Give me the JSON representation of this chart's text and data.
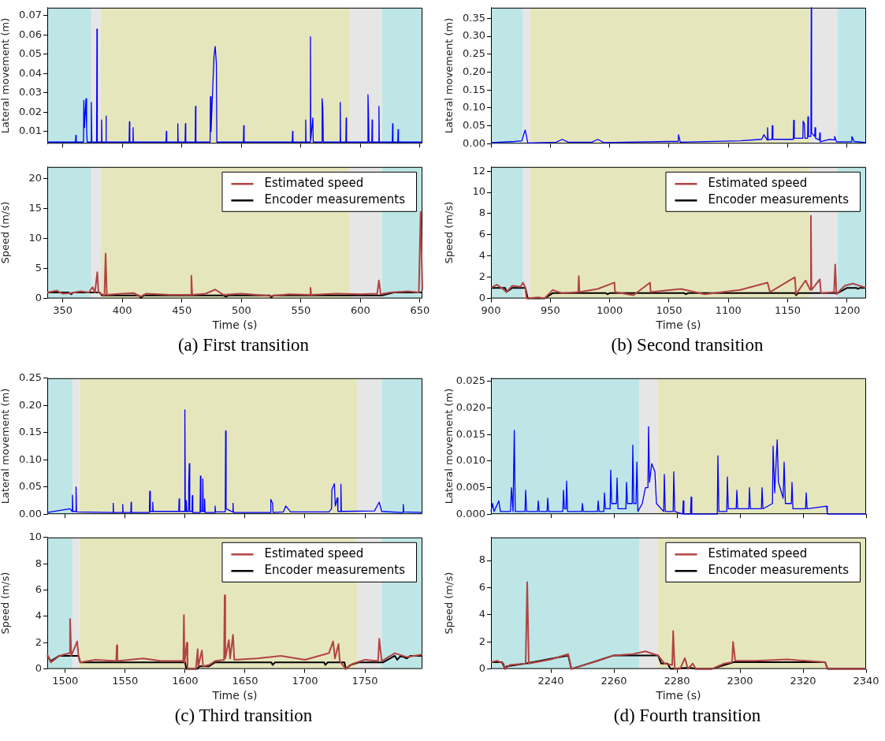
{
  "chart_data": [
    {
      "type": "line",
      "ylabel": "Lateral movement (m)",
      "xlim": [
        337,
        652
      ],
      "xticks": [
        350,
        400,
        450,
        500,
        550,
        600,
        650
      ],
      "ylim": [
        0.0037,
        0.074
      ],
      "yticks": [
        0.01,
        0.02,
        0.03,
        0.04,
        0.05,
        0.06,
        0.07
      ],
      "tick_labels": "y",
      "bands": [
        {
          "axis": "x",
          "from": 337,
          "to": 374,
          "color": "#bee6e6"
        },
        {
          "axis": "x",
          "from": 374,
          "to": 382,
          "color": "#e6e6e6"
        },
        {
          "axis": "x",
          "from": 382,
          "to": 591,
          "color": "#e6e6bd"
        },
        {
          "axis": "x",
          "from": 591,
          "to": 618,
          "color": "#e6e6e6"
        },
        {
          "axis": "x",
          "from": 618,
          "to": 652,
          "color": "#bee6e6"
        }
      ],
      "series": [
        {
          "color": "#0000ff",
          "x": [
            337,
            360.7,
            361,
            361.3,
            367.4,
            367.7,
            368.2,
            369.5,
            370,
            370.5,
            373.7,
            374,
            374.4,
            378.4,
            378.7,
            379,
            382.3,
            382.6,
            382.9,
            386,
            386.3,
            386.6,
            405.7,
            406,
            406.3,
            408.7,
            409,
            409.3,
            436.7,
            437,
            437.3,
            446.3,
            446.6,
            446.9,
            452.7,
            453,
            453.3,
            461.2,
            461.5,
            461.8,
            473.7,
            474,
            474.5,
            477,
            478,
            479,
            479.4,
            501.7,
            502,
            502.3,
            542.7,
            543,
            543.3,
            553.7,
            554,
            554.3,
            557.7,
            558,
            558.3,
            560,
            560.3,
            567.5,
            567.8,
            568.4,
            568.8,
            582.7,
            583,
            583.3,
            587.7,
            588,
            588.3,
            606,
            606.3,
            606.7,
            607.2,
            609.5,
            609.8,
            610.1,
            615.2,
            615.5,
            615.8,
            626.7,
            627,
            627.3,
            631.3,
            631.6,
            631.9,
            652
          ],
          "values": [
            0.0045,
            0.0045,
            0.008,
            0.0045,
            0.0045,
            0.026,
            0.012,
            0.027,
            0.012,
            0.0045,
            0.0045,
            0.025,
            0.0045,
            0.0045,
            0.063,
            0.0045,
            0.0045,
            0.016,
            0.0045,
            0.0045,
            0.018,
            0.0045,
            0.0045,
            0.015,
            0.0045,
            0.0045,
            0.012,
            0.0045,
            0.0045,
            0.01,
            0.0045,
            0.0045,
            0.014,
            0.0045,
            0.0045,
            0.014,
            0.0045,
            0.0045,
            0.023,
            0.0045,
            0.0045,
            0.028,
            0.01,
            0.049,
            0.054,
            0.045,
            0.0045,
            0.0045,
            0.013,
            0.0045,
            0.0045,
            0.01,
            0.0045,
            0.0045,
            0.016,
            0.0045,
            0.0045,
            0.059,
            0.006,
            0.017,
            0.0045,
            0.0045,
            0.027,
            0.022,
            0.0045,
            0.0045,
            0.025,
            0.0045,
            0.0045,
            0.017,
            0.0045,
            0.0045,
            0.029,
            0.02,
            0.0045,
            0.0045,
            0.016,
            0.0045,
            0.0045,
            0.023,
            0.0045,
            0.0045,
            0.014,
            0.0045,
            0.0045,
            0.011,
            0.0045,
            0.0045
          ]
        }
      ]
    },
    {
      "type": "line",
      "xlabel": "Time (s)",
      "ylabel": "Speed (m/s)",
      "xlim": [
        337,
        652
      ],
      "xticks": [
        350,
        400,
        450,
        500,
        550,
        600,
        650
      ],
      "ylim": [
        0,
        22
      ],
      "yticks": [
        0,
        5,
        10,
        15,
        20
      ],
      "legend": "top right",
      "annotations": [
        "(a) First transition"
      ],
      "bands": [
        {
          "axis": "x",
          "from": 337,
          "to": 374,
          "color": "#bee6e6"
        },
        {
          "axis": "x",
          "from": 374,
          "to": 382,
          "color": "#e6e6e6"
        },
        {
          "axis": "x",
          "from": 382,
          "to": 591,
          "color": "#e6e6bd"
        },
        {
          "axis": "x",
          "from": 591,
          "to": 618,
          "color": "#e6e6e6"
        },
        {
          "axis": "x",
          "from": 618,
          "to": 652,
          "color": "#bee6e6"
        }
      ],
      "series": [
        {
          "name": "Estimated speed",
          "color": "#b24343",
          "x": [
            337,
            345,
            350,
            357,
            365,
            372,
            375,
            377,
            379,
            380,
            382,
            385,
            386,
            387,
            400,
            410,
            415,
            420,
            440,
            457.5,
            458,
            458.7,
            470,
            478,
            485,
            500,
            525,
            540,
            557.5,
            558,
            558.6,
            580,
            600,
            614,
            615.5,
            617,
            625,
            640,
            649,
            650.5,
            652
          ],
          "values": [
            1.0,
            1.3,
            0.8,
            0.9,
            1.2,
            1.0,
            1.9,
            1.0,
            4.4,
            1.0,
            0.8,
            0.5,
            7.5,
            0.6,
            0.8,
            0.9,
            0.3,
            0.8,
            0.6,
            0.6,
            3.8,
            0.6,
            0.8,
            1.5,
            0.6,
            0.8,
            0.4,
            0.7,
            0.6,
            1.8,
            0.6,
            0.8,
            0.7,
            0.8,
            3.0,
            0.7,
            1.0,
            1.2,
            1.0,
            14.5,
            1.5
          ]
        },
        {
          "name": "Encoder measurements",
          "color": "#000000",
          "x": [
            337,
            355,
            357,
            359,
            381,
            383,
            414,
            415.5,
            418,
            485,
            487,
            489,
            524,
            525,
            527,
            618,
            628,
            652
          ],
          "values": [
            1.0,
            1.0,
            0.7,
            1.0,
            1.0,
            0.5,
            0.5,
            0.1,
            0.5,
            0.5,
            0.3,
            0.5,
            0.5,
            0.2,
            0.5,
            0.5,
            1.0,
            1.0
          ]
        }
      ]
    },
    {
      "type": "line",
      "ylabel": "Lateral movement (m)",
      "xlim": [
        900,
        1216
      ],
      "xticks": [
        900,
        950,
        1000,
        1050,
        1100,
        1150,
        1200
      ],
      "ylim": [
        0,
        0.38
      ],
      "yticks": [
        {
          "value": 0,
          "label": "0.00"
        },
        0.05,
        {
          "value": 0.1,
          "label": "0.10"
        },
        0.15,
        {
          "value": 0.2,
          "label": "0.20"
        },
        0.25,
        {
          "value": 0.3,
          "label": "0.30"
        },
        0.35
      ],
      "tick_labels": "y",
      "bands": [
        {
          "axis": "x",
          "from": 900,
          "to": 927,
          "color": "#bee6e6"
        },
        {
          "axis": "x",
          "from": 927,
          "to": 933,
          "color": "#e6e6e6"
        },
        {
          "axis": "x",
          "from": 933,
          "to": 1168.5,
          "color": "#e6e6bd"
        },
        {
          "axis": "x",
          "from": 1168.5,
          "to": 1191.7,
          "color": "#e6e6e6"
        },
        {
          "axis": "x",
          "from": 1191.7,
          "to": 1216,
          "color": "#bee6e6"
        }
      ],
      "series": [
        {
          "color": "#0000ff",
          "x": [
            900,
            920,
            926,
            928,
            928.8,
            930,
            931,
            955,
            960,
            965,
            985,
            990,
            995,
            1050,
            1057.7,
            1058,
            1059.5,
            1110,
            1128,
            1130,
            1132.7,
            1133,
            1133.5,
            1136.7,
            1137,
            1137.5,
            1154.7,
            1155,
            1155.5,
            1162.7,
            1163,
            1164,
            1164.5,
            1166.7,
            1167,
            1167.5,
            1169.5,
            1169.8,
            1170.1,
            1172.7,
            1173,
            1173.5,
            1176.7,
            1177,
            1177.4,
            1185,
            1189.3,
            1189.6,
            1191,
            1203.7,
            1204,
            1206,
            1216
          ],
          "values": [
            0.003,
            0.006,
            0.008,
            0.03,
            0.038,
            0.02,
            0.002,
            0.004,
            0.012,
            0.004,
            0.004,
            0.012,
            0.003,
            0.006,
            0.006,
            0.025,
            0.004,
            0.008,
            0.012,
            0.025,
            0.01,
            0.045,
            0.01,
            0.012,
            0.05,
            0.012,
            0.012,
            0.065,
            0.015,
            0.015,
            0.063,
            0.055,
            0.015,
            0.015,
            0.075,
            0.02,
            0.02,
            0.38,
            0.03,
            0.02,
            0.045,
            0.015,
            0.01,
            0.03,
            0.005,
            0.012,
            0.01,
            0.02,
            0.005,
            0.005,
            0.02,
            0.006,
            0.003
          ]
        }
      ]
    },
    {
      "type": "line",
      "xlabel": "Time (s)",
      "ylabel": "Speed (m/s)",
      "xlim": [
        900,
        1216
      ],
      "xticks": [
        900,
        950,
        1000,
        1050,
        1100,
        1150,
        1200
      ],
      "ylim": [
        0,
        12.4
      ],
      "yticks": [
        0,
        2,
        4,
        6,
        8,
        10,
        12
      ],
      "legend": "top right",
      "annotations": [
        "(b) Second transition"
      ],
      "bands": [
        {
          "axis": "x",
          "from": 900,
          "to": 927,
          "color": "#bee6e6"
        },
        {
          "axis": "x",
          "from": 927,
          "to": 933,
          "color": "#e6e6e6"
        },
        {
          "axis": "x",
          "from": 933,
          "to": 1168.5,
          "color": "#e6e6bd"
        },
        {
          "axis": "x",
          "from": 1168.5,
          "to": 1191.7,
          "color": "#e6e6e6"
        },
        {
          "axis": "x",
          "from": 1191.7,
          "to": 1216,
          "color": "#bee6e6"
        }
      ],
      "series": [
        {
          "name": "Estimated speed",
          "color": "#b24343",
          "x": [
            900,
            905,
            910,
            913,
            918,
            925,
            927,
            929,
            930,
            940,
            945,
            952,
            960,
            973.5,
            974,
            974.5,
            990,
            1004,
            1004.5,
            1020,
            1034,
            1034.5,
            1060,
            1080,
            1110,
            1133,
            1135,
            1156,
            1157,
            1165,
            1169,
            1169.5,
            1170,
            1177,
            1178,
            1189,
            1190,
            1191,
            1198,
            1205,
            1216
          ],
          "values": [
            1.0,
            1.3,
            0.9,
            0.6,
            1.2,
            1.1,
            1.5,
            1.0,
            0,
            0.1,
            0,
            0.8,
            0.5,
            0.6,
            2.1,
            0.6,
            0.9,
            1.5,
            0.6,
            0.3,
            1.5,
            0.6,
            0.9,
            0.4,
            0.8,
            1.5,
            0.6,
            2.0,
            0.4,
            1.7,
            0.8,
            7.8,
            0.8,
            1.8,
            0.5,
            0.6,
            3.2,
            0.4,
            1.2,
            1.4,
            1.0
          ]
        },
        {
          "name": "Encoder measurements",
          "color": "#000000",
          "x": [
            900,
            912,
            913,
            918,
            929,
            931,
            945,
            952,
            997,
            998,
            1000,
            1063,
            1064,
            1066,
            1156,
            1157,
            1159,
            1192,
            1200,
            1208,
            1209,
            1211,
            1216
          ],
          "values": [
            1.0,
            1.0,
            0.6,
            1.0,
            1.0,
            0,
            0,
            0.5,
            0.5,
            0.4,
            0.5,
            0.5,
            0.4,
            0.5,
            0.5,
            0.3,
            0.5,
            0.5,
            1.0,
            1.0,
            0.9,
            1.0,
            1.0
          ]
        }
      ]
    },
    {
      "type": "line",
      "ylabel": "Lateral movement (m)",
      "xlim": [
        1485,
        1798
      ],
      "xticks": [
        1500,
        1550,
        1600,
        1650,
        1700,
        1750
      ],
      "ylim": [
        0,
        0.25
      ],
      "yticks": [
        {
          "value": 0,
          "label": "0.00"
        },
        0.05,
        {
          "value": 0.1,
          "label": "0.10"
        },
        0.15,
        {
          "value": 0.2,
          "label": "0.20"
        },
        0.25
      ],
      "tick_labels": "y",
      "bands": [
        {
          "axis": "x",
          "from": 1485,
          "to": 1506,
          "color": "#bee6e6"
        },
        {
          "axis": "x",
          "from": 1506,
          "to": 1511.6,
          "color": "#e6e6e6"
        },
        {
          "axis": "x",
          "from": 1511.6,
          "to": 1743.5,
          "color": "#e6e6bd"
        },
        {
          "axis": "x",
          "from": 1743.5,
          "to": 1764,
          "color": "#e6e6e6"
        },
        {
          "axis": "x",
          "from": 1764,
          "to": 1798,
          "color": "#bee6e6"
        }
      ],
      "series": [
        {
          "color": "#0000ff",
          "x": [
            1485,
            1504,
            1505.7,
            1506,
            1506.4,
            1508.7,
            1509,
            1509.4,
            1539.7,
            1540,
            1540.3,
            1547.7,
            1548,
            1548.3,
            1554.7,
            1555,
            1555.3,
            1570.2,
            1570.5,
            1571,
            1572.7,
            1573,
            1573.4,
            1594.7,
            1595,
            1595.4,
            1599.5,
            1599.8,
            1600.2,
            1600.8,
            1601,
            1601.5,
            1602.8,
            1603,
            1603.5,
            1603.9,
            1605.7,
            1606,
            1606.4,
            1612.5,
            1612.8,
            1613.2,
            1614.5,
            1614.8,
            1615.2,
            1616,
            1616.3,
            1616.7,
            1624.7,
            1625,
            1625.4,
            1633.5,
            1633.8,
            1634.2,
            1639.7,
            1640,
            1640.3,
            1671.2,
            1671.5,
            1673,
            1673.4,
            1682,
            1684,
            1688,
            1720,
            1722.2,
            1722.5,
            1724.6,
            1725.3,
            1727,
            1727.5,
            1729.7,
            1730,
            1730.4,
            1758,
            1761,
            1762,
            1764,
            1781.7,
            1782,
            1782.5,
            1798
          ],
          "values": [
            0.003,
            0.01,
            0.005,
            0.035,
            0.005,
            0.005,
            0.05,
            0.004,
            0.003,
            0.02,
            0.003,
            0.003,
            0.018,
            0.003,
            0.003,
            0.022,
            0.003,
            0.003,
            0.042,
            0.005,
            0.005,
            0.022,
            0.005,
            0.005,
            0.028,
            0.005,
            0.005,
            0.192,
            0.005,
            0.005,
            0.025,
            0.005,
            0.005,
            0.055,
            0.093,
            0.005,
            0.005,
            0.034,
            0.003,
            0.003,
            0.07,
            0.005,
            0.005,
            0.065,
            0.005,
            0.005,
            0.028,
            0.003,
            0.003,
            0.015,
            0.004,
            0.004,
            0.153,
            0.01,
            0.004,
            0.02,
            0.003,
            0.003,
            0.027,
            0.02,
            0.003,
            0.004,
            0.015,
            0.004,
            0.004,
            0.01,
            0.045,
            0.056,
            0.015,
            0.03,
            0.005,
            0.005,
            0.055,
            0.005,
            0.006,
            0.018,
            0.022,
            0.005,
            0.003,
            0.018,
            0.004,
            0.003
          ]
        }
      ]
    },
    {
      "type": "line",
      "xlabel": "Time (s)",
      "ylabel": "Speed (m/s)",
      "xlim": [
        1485,
        1798
      ],
      "xticks": [
        1500,
        1550,
        1600,
        1650,
        1700,
        1750
      ],
      "ylim": [
        0,
        10
      ],
      "yticks": [
        0,
        2,
        4,
        6,
        8,
        10
      ],
      "legend": "top right",
      "annotations": [
        "(c) Third transition"
      ],
      "bands": [
        {
          "axis": "x",
          "from": 1485,
          "to": 1506,
          "color": "#bee6e6"
        },
        {
          "axis": "x",
          "from": 1506,
          "to": 1511.6,
          "color": "#e6e6e6"
        },
        {
          "axis": "x",
          "from": 1511.6,
          "to": 1743.5,
          "color": "#e6e6bd"
        },
        {
          "axis": "x",
          "from": 1743.5,
          "to": 1764,
          "color": "#e6e6e6"
        },
        {
          "axis": "x",
          "from": 1764,
          "to": 1798,
          "color": "#bee6e6"
        }
      ],
      "series": [
        {
          "name": "Estimated speed",
          "color": "#b24343",
          "x": [
            1485,
            1488,
            1495,
            1503.5,
            1504,
            1505,
            1510,
            1511,
            1512.5,
            1525,
            1542.5,
            1543,
            1543.5,
            1565,
            1580,
            1598.5,
            1599,
            1599.5,
            1601.5,
            1602,
            1609,
            1610.5,
            1611,
            1614,
            1615,
            1620,
            1625,
            1632.5,
            1633,
            1633.5,
            1636.5,
            1637.5,
            1640,
            1641,
            1660,
            1680,
            1700,
            1720,
            1723.5,
            1725,
            1728,
            1729,
            1734,
            1740,
            1750,
            1761,
            1762,
            1764,
            1775,
            1785,
            1798
          ],
          "values": [
            1.1,
            0.5,
            1.0,
            1.2,
            3.8,
            1.0,
            2.1,
            1.0,
            0.5,
            0.7,
            0.6,
            1.8,
            0.6,
            0.8,
            0.6,
            0.6,
            4.1,
            0.5,
            2.0,
            0,
            0,
            1.5,
            0.2,
            1.4,
            0.2,
            0.3,
            0.6,
            0.7,
            5.6,
            0.8,
            2.2,
            0.8,
            2.6,
            0.7,
            0.8,
            1.0,
            0.7,
            1.2,
            2.1,
            0.8,
            1.9,
            0.6,
            0,
            0.4,
            0.7,
            0.6,
            2.3,
            0.6,
            1.2,
            0.9,
            1.1
          ]
        },
        {
          "name": "Encoder measurements",
          "color": "#000000",
          "x": [
            1485,
            1488,
            1495,
            1511,
            1512.5,
            1600,
            1601,
            1610,
            1612,
            1620,
            1625,
            1672,
            1673,
            1675,
            1716,
            1717,
            1719,
            1733,
            1734,
            1738,
            1745,
            1765,
            1775,
            1777,
            1780,
            1785,
            1788,
            1798
          ],
          "values": [
            1.0,
            0.6,
            1.0,
            1.0,
            0.5,
            0.5,
            0,
            0,
            0.2,
            0.2,
            0.5,
            0.5,
            0.3,
            0.5,
            0.5,
            0.3,
            0.5,
            0.5,
            0,
            0.3,
            0.5,
            0.5,
            1.0,
            0.7,
            1.0,
            0.8,
            1.0,
            1.0
          ]
        }
      ]
    },
    {
      "type": "line",
      "ylabel": "Lateral movement (m)",
      "xlim": [
        2221,
        2340
      ],
      "xticks": [
        2240,
        2260,
        2280,
        2300,
        2320,
        2340
      ],
      "ylim": [
        0,
        0.0256
      ],
      "yticks": [
        {
          "value": 0,
          "label": "0.000"
        },
        0.005,
        {
          "value": 0.01,
          "label": "0.010"
        },
        0.015,
        {
          "value": 0.02,
          "label": "0.020"
        },
        0.025
      ],
      "tick_labels": "y",
      "bands": [
        {
          "axis": "x",
          "from": 2221,
          "to": 2268,
          "color": "#bee6e6"
        },
        {
          "axis": "x",
          "from": 2268,
          "to": 2274,
          "color": "#e6e6e6"
        },
        {
          "axis": "x",
          "from": 2274,
          "to": 2340,
          "color": "#e6e6bd"
        }
      ],
      "series": [
        {
          "color": "#0000ff",
          "x": [
            2221,
            2221.5,
            2222,
            2223.5,
            2224,
            2227.2,
            2227.5,
            2228,
            2228.2,
            2228.4,
            2228.7,
            2231.8,
            2232,
            2232.3,
            2235.8,
            2236,
            2236.3,
            2238.8,
            2239,
            2239.3,
            2243.8,
            2244,
            2244.3,
            2244.8,
            2245,
            2245.3,
            2249.8,
            2250,
            2250.3,
            2254.8,
            2255,
            2255.3,
            2256.8,
            2257,
            2257.3,
            2258.8,
            2259,
            2259.3,
            2260.8,
            2261,
            2261.3,
            2263.8,
            2264,
            2264.3,
            2265.8,
            2266,
            2266.3,
            2267,
            2267.3,
            2267.6,
            2269,
            2270,
            2270.8,
            2271,
            2271.3,
            2272,
            2273,
            2273.5,
            2275.8,
            2276,
            2276.3,
            2278.8,
            2279,
            2279.3,
            2281.8,
            2282,
            2282.2,
            2284.3,
            2284.5,
            2284.7,
            2292.8,
            2293,
            2293.3,
            2295.8,
            2296,
            2296.3,
            2298.8,
            2299,
            2299.3,
            2302.8,
            2303,
            2303.3,
            2306.8,
            2307,
            2307.3,
            2310.3,
            2310.5,
            2311,
            2311.8,
            2312.2,
            2313.7,
            2314,
            2314.4,
            2316.3,
            2316.5,
            2316.8,
            2320.8,
            2321,
            2321.3,
            2327.5,
            2327.7,
            2340
          ],
          "values": [
            0.0005,
            0.002,
            0.0005,
            0.0025,
            0.0005,
            0.0005,
            0.005,
            0.0005,
            0.0005,
            0.0158,
            0.0005,
            0.0005,
            0.0045,
            0.0005,
            0.0005,
            0.0025,
            0.0005,
            0.0005,
            0.003,
            0.0005,
            0.0005,
            0.0045,
            0.001,
            0.001,
            0.0062,
            0.0005,
            0.0005,
            0.002,
            0.0005,
            0.0005,
            0.0025,
            0.0005,
            0.0005,
            0.004,
            0.001,
            0.001,
            0.0083,
            0.002,
            0.002,
            0.0068,
            0.001,
            0.001,
            0.006,
            0.002,
            0.002,
            0.013,
            0.002,
            0.002,
            0.0098,
            0.0005,
            0.002,
            0.005,
            0.005,
            0.0165,
            0.006,
            0.0095,
            0.008,
            0.002,
            0.0005,
            0.0075,
            0.0005,
            0.0005,
            0.008,
            0.0005,
            0,
            0.0025,
            0,
            0,
            0.0032,
            0,
            0,
            0.011,
            0.0005,
            0.0005,
            0.007,
            0.001,
            0.001,
            0.0045,
            0.001,
            0.001,
            0.005,
            0.001,
            0.001,
            0.005,
            0.001,
            0.002,
            0.0128,
            0.004,
            0.014,
            0.006,
            0.003,
            0.0098,
            0.002,
            0.002,
            0.006,
            0.001,
            0.001,
            0.004,
            0.001,
            0.0015,
            0,
            0
          ]
        }
      ]
    },
    {
      "type": "line",
      "xlabel": "Time (s)",
      "ylabel": "Speed (m/s)",
      "xlim": [
        2221,
        2340
      ],
      "xticks": [
        2240,
        2260,
        2280,
        2300,
        2320,
        2340
      ],
      "ylim": [
        0,
        9.7
      ],
      "yticks": [
        0,
        2,
        4,
        6,
        8
      ],
      "legend": "top right",
      "annotations": [
        "(d) Fourth transition"
      ],
      "bands": [
        {
          "axis": "x",
          "from": 2221,
          "to": 2268,
          "color": "#bee6e6"
        },
        {
          "axis": "x",
          "from": 2268,
          "to": 2274,
          "color": "#e6e6e6"
        },
        {
          "axis": "x",
          "from": 2274,
          "to": 2340,
          "color": "#e6e6bd"
        }
      ],
      "series": [
        {
          "name": "Estimated speed",
          "color": "#b24343",
          "x": [
            2221,
            2223,
            2225,
            2225.5,
            2227,
            2232,
            2232.5,
            2233,
            2240,
            2245.5,
            2246.5,
            2255,
            2260,
            2266,
            2270,
            2274,
            2276,
            2278.5,
            2278.8,
            2279.3,
            2281,
            2282.5,
            2283.5,
            2285,
            2286,
            2291,
            2295,
            2297.5,
            2297.8,
            2298.5,
            2305,
            2315,
            2327,
            2327.8,
            2340
          ],
          "values": [
            0.5,
            0.6,
            0.4,
            0,
            0.3,
            0.4,
            6.4,
            0.4,
            0.7,
            1.1,
            0,
            0.6,
            1.0,
            1.1,
            1.3,
            1.0,
            0.4,
            0.3,
            2.8,
            0,
            0,
            0.8,
            0,
            0.4,
            0,
            0,
            0.4,
            0.5,
            2.0,
            0.6,
            0.6,
            0.7,
            0.5,
            0,
            0
          ]
        },
        {
          "name": "Encoder measurements",
          "color": "#000000",
          "x": [
            2221,
            2224.5,
            2225.5,
            2226,
            2232,
            2245.5,
            2246.5,
            2260,
            2274,
            2275,
            2277,
            2278,
            2284,
            2286,
            2291,
            2298,
            2327,
            2327.8,
            2340
          ],
          "values": [
            0.5,
            0.5,
            0,
            0.2,
            0.4,
            1.0,
            0,
            1.0,
            1.0,
            0.4,
            0.4,
            0,
            0.1,
            0,
            0,
            0.5,
            0.5,
            0,
            0
          ]
        }
      ]
    }
  ]
}
